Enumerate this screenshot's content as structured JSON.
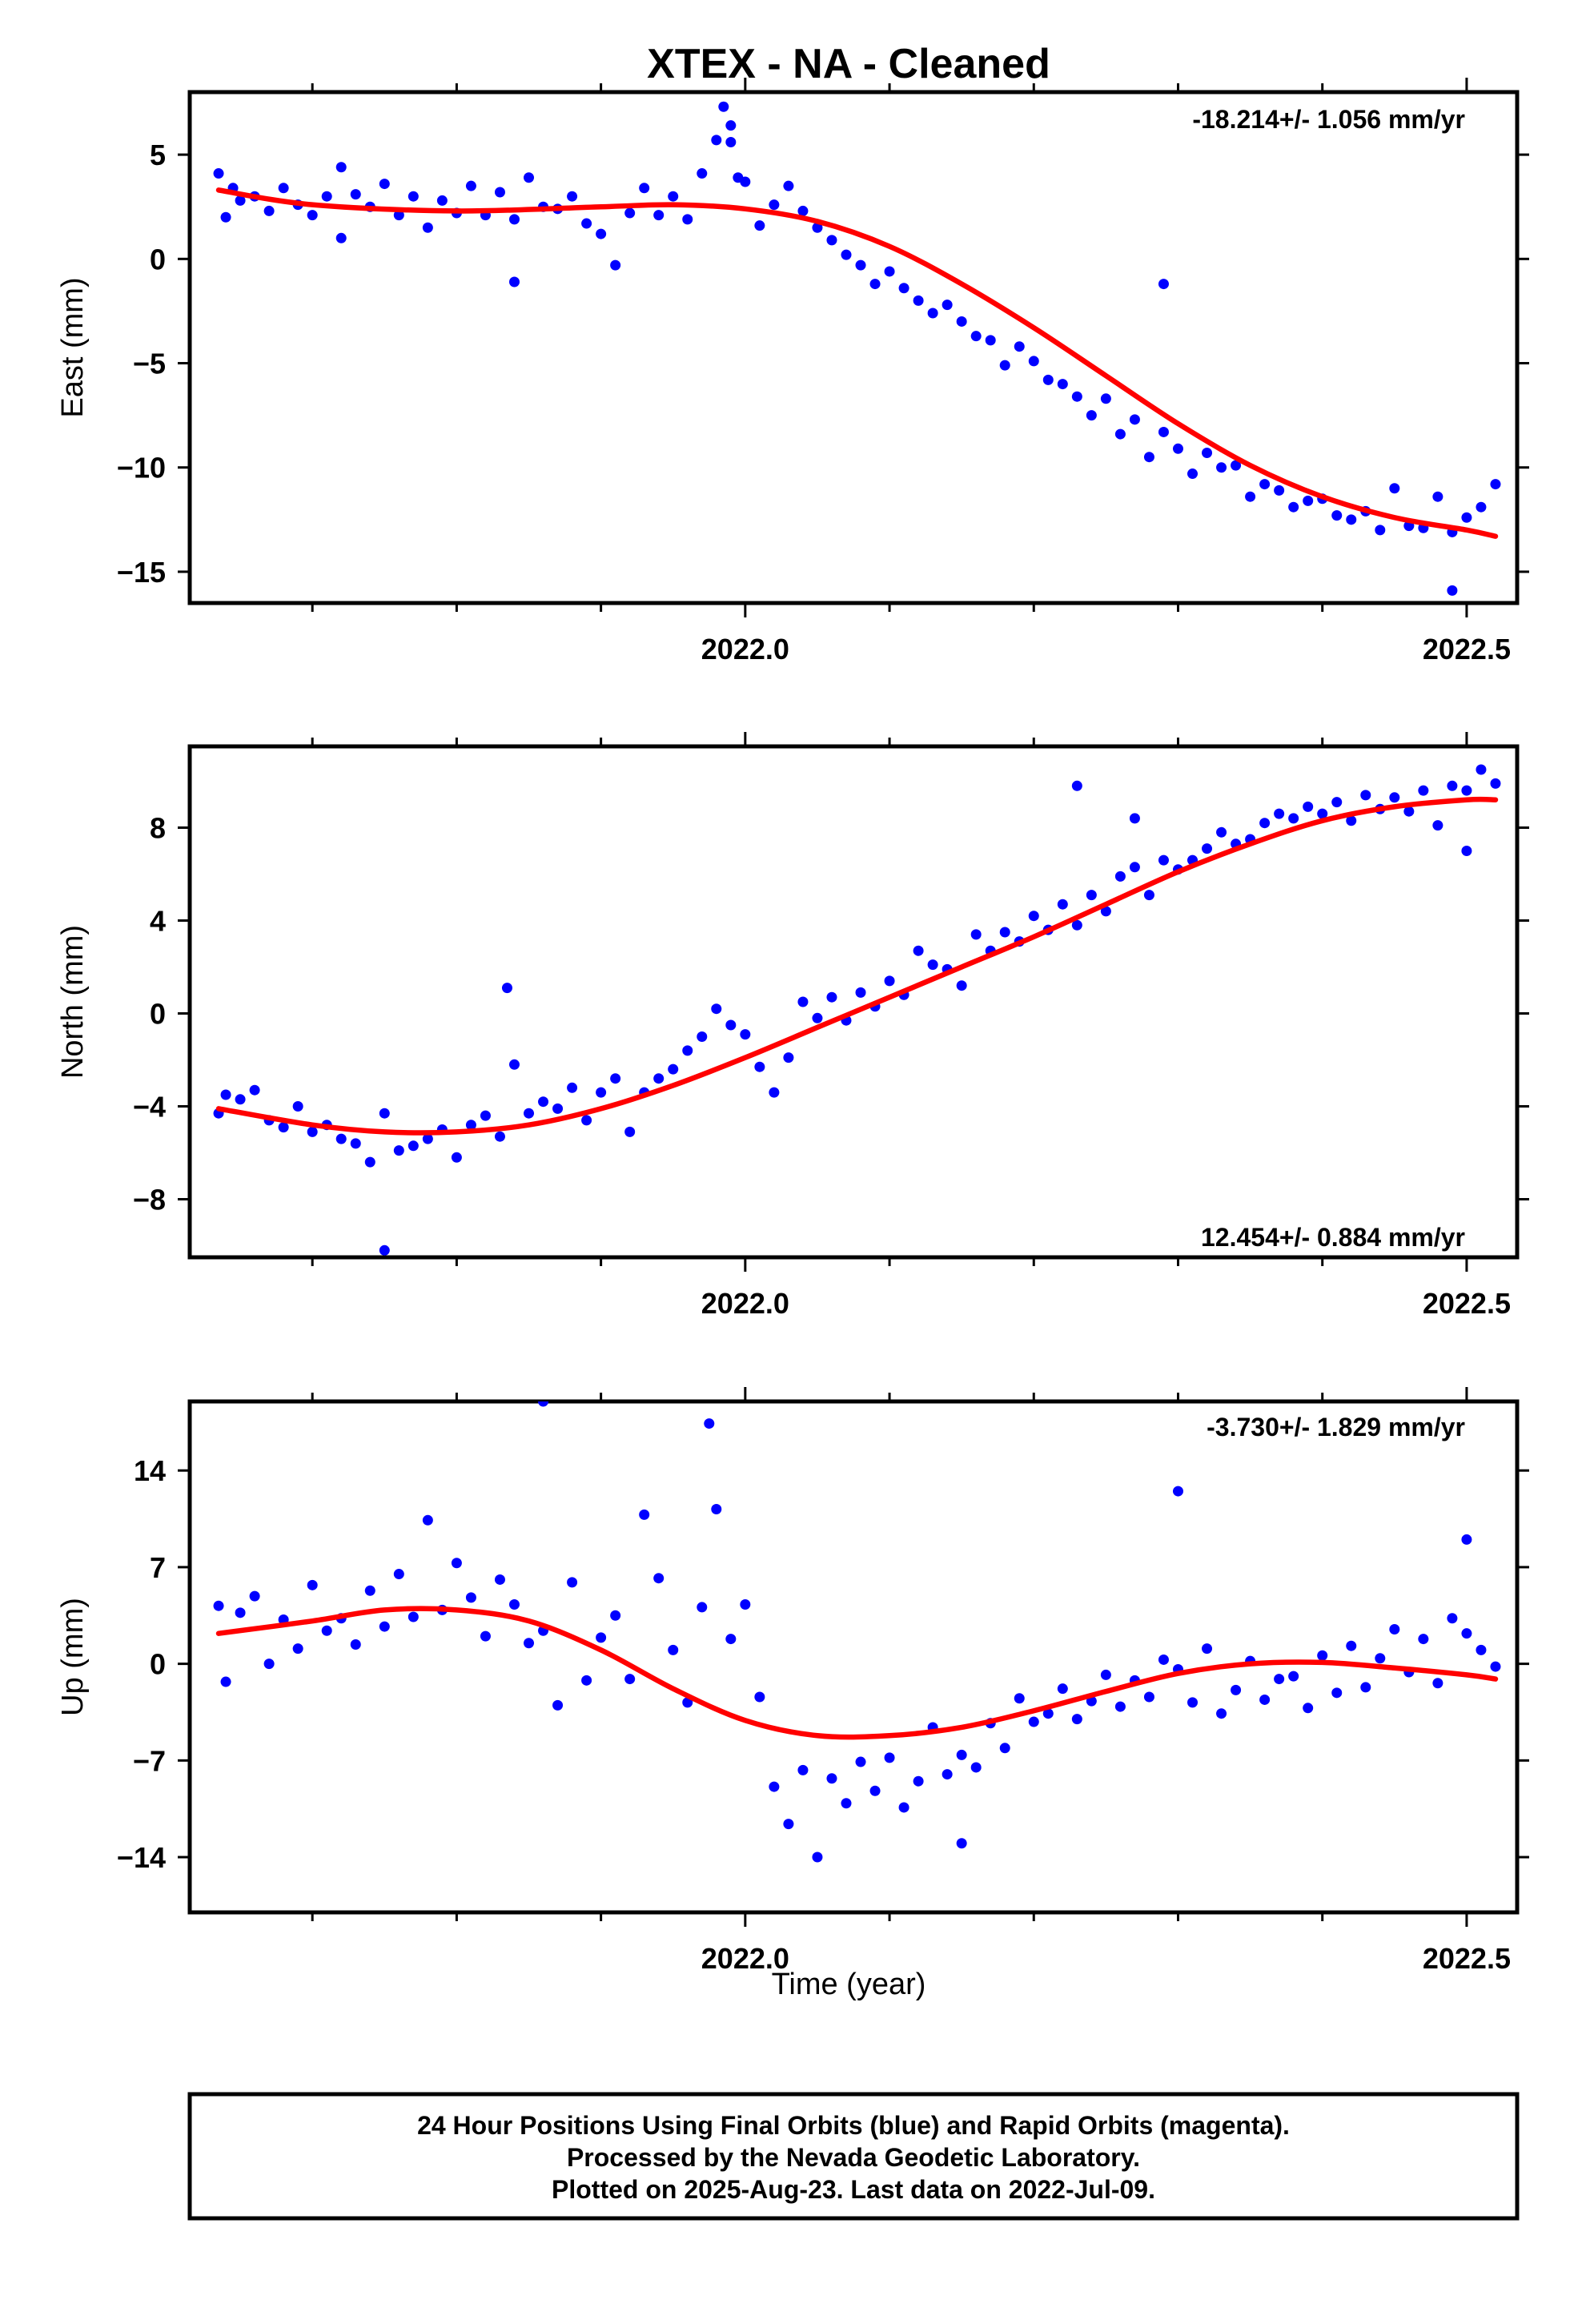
{
  "title": "XTEX  - NA - Cleaned",
  "xlabel": "Time (year)",
  "footer": [
    "24 Hour Positions Using Final Orbits (blue) and Rapid Orbits (magenta).",
    "Processed by the Nevada Geodetic Laboratory.",
    "Plotted on 2025-Aug-23. Last data on 2022-Jul-09."
  ],
  "colors": {
    "final_orbits": "#0000ff",
    "fit": "#ff0000",
    "frame": "#000000"
  },
  "chart_data": [
    {
      "type": "scatter",
      "ylabel": "East (mm)",
      "rate": "-18.214+/- 1.056 mm/yr",
      "xlim": [
        2021.615,
        2022.535
      ],
      "ylim": [
        -16.5,
        8.0
      ],
      "xticks": [
        2022.0,
        2022.5
      ],
      "xticklabels": [
        "2022.0",
        "2022.5"
      ],
      "yticks": [
        5,
        0,
        -5,
        -10,
        -15
      ],
      "yticklabels": [
        "5",
        "0",
        "−5",
        "−10",
        "−15"
      ],
      "fit": {
        "x": [
          2021.635,
          2021.7,
          2021.8,
          2021.9,
          2021.95,
          2022.0,
          2022.05,
          2022.1,
          2022.15,
          2022.2,
          2022.25,
          2022.3,
          2022.35,
          2022.4,
          2022.45,
          2022.5,
          2022.52
        ],
        "y": [
          3.3,
          2.6,
          2.3,
          2.5,
          2.6,
          2.4,
          1.8,
          0.6,
          -1.2,
          -3.3,
          -5.6,
          -7.9,
          -9.9,
          -11.4,
          -12.4,
          -13.0,
          -13.3
        ]
      },
      "points": {
        "x": [
          2021.635,
          2021.64,
          2021.645,
          2021.65,
          2021.66,
          2021.67,
          2021.68,
          2021.69,
          2021.7,
          2021.71,
          2021.72,
          2021.73,
          2021.74,
          2021.75,
          2021.76,
          2021.77,
          2021.78,
          2021.79,
          2021.8,
          2021.81,
          2021.82,
          2021.83,
          2021.84,
          2021.85,
          2021.86,
          2021.87,
          2021.88,
          2021.89,
          2021.9,
          2021.91,
          2021.92,
          2021.93,
          2021.94,
          2021.95,
          2021.96,
          2021.97,
          2021.98,
          2021.985,
          2021.99,
          2021.995,
          2022.0,
          2022.01,
          2022.02,
          2022.03,
          2022.04,
          2022.05,
          2022.06,
          2022.07,
          2022.08,
          2022.09,
          2022.1,
          2022.11,
          2022.12,
          2022.13,
          2022.14,
          2022.15,
          2022.16,
          2022.17,
          2022.18,
          2022.19,
          2022.2,
          2022.21,
          2022.22,
          2022.23,
          2022.24,
          2022.25,
          2022.26,
          2022.27,
          2022.28,
          2022.29,
          2022.3,
          2022.31,
          2022.32,
          2022.33,
          2022.34,
          2022.35,
          2022.36,
          2022.37,
          2022.38,
          2022.39,
          2022.4,
          2022.41,
          2022.42,
          2022.43,
          2022.44,
          2022.45,
          2022.46,
          2022.47,
          2022.48,
          2022.49,
          2022.5,
          2022.51,
          2022.52,
          2021.72,
          2021.84,
          2021.99,
          2022.29,
          2022.49
        ],
        "y": [
          4.1,
          2.0,
          3.4,
          2.8,
          3.0,
          2.3,
          3.4,
          2.6,
          2.1,
          3.0,
          4.4,
          3.1,
          2.5,
          3.6,
          2.1,
          3.0,
          1.5,
          2.8,
          2.2,
          3.5,
          2.1,
          3.2,
          1.9,
          3.9,
          2.5,
          2.4,
          3.0,
          1.7,
          1.2,
          -0.3,
          2.2,
          3.4,
          2.1,
          3.0,
          1.9,
          4.1,
          5.7,
          7.3,
          5.6,
          3.9,
          3.7,
          1.6,
          2.6,
          3.5,
          2.3,
          1.5,
          0.9,
          0.2,
          -0.3,
          -1.2,
          -0.6,
          -1.4,
          -2.0,
          -2.6,
          -2.2,
          -3.0,
          -3.7,
          -3.9,
          -5.1,
          -4.2,
          -4.9,
          -5.8,
          -6.0,
          -6.6,
          -7.5,
          -6.7,
          -8.4,
          -7.7,
          -9.5,
          -8.3,
          -9.1,
          -10.3,
          -9.3,
          -10.0,
          -9.9,
          -11.4,
          -10.8,
          -11.1,
          -11.9,
          -11.6,
          -11.5,
          -12.3,
          -12.5,
          -12.1,
          -13.0,
          -11.0,
          -12.8,
          -12.9,
          -11.4,
          -13.1,
          -12.4,
          -11.9,
          -10.8,
          1.0,
          -1.1,
          6.4,
          -1.2,
          -15.9
        ]
      }
    },
    {
      "type": "scatter",
      "ylabel": "North (mm)",
      "rate": "12.454+/- 0.884 mm/yr",
      "xlim": [
        2021.615,
        2022.535
      ],
      "ylim": [
        -10.5,
        11.5
      ],
      "xticks": [
        2022.0,
        2022.5
      ],
      "xticklabels": [
        "2022.0",
        "2022.5"
      ],
      "yticks": [
        8,
        4,
        0,
        -4,
        -8
      ],
      "yticklabels": [
        "8",
        "4",
        "0",
        "−4",
        "−8"
      ],
      "fit": {
        "x": [
          2021.635,
          2021.7,
          2021.75,
          2021.8,
          2021.85,
          2021.9,
          2021.95,
          2022.0,
          2022.05,
          2022.1,
          2022.15,
          2022.2,
          2022.25,
          2022.3,
          2022.35,
          2022.4,
          2022.45,
          2022.5,
          2022.52
        ],
        "y": [
          -4.1,
          -4.8,
          -5.1,
          -5.1,
          -4.8,
          -4.1,
          -3.1,
          -1.9,
          -0.6,
          0.7,
          2.0,
          3.3,
          4.7,
          6.1,
          7.3,
          8.3,
          8.9,
          9.2,
          9.2
        ]
      },
      "points": {
        "x": [
          2021.635,
          2021.64,
          2021.65,
          2021.66,
          2021.67,
          2021.68,
          2021.69,
          2021.7,
          2021.71,
          2021.72,
          2021.73,
          2021.74,
          2021.75,
          2021.76,
          2021.77,
          2021.78,
          2021.79,
          2021.8,
          2021.81,
          2021.82,
          2021.83,
          2021.84,
          2021.85,
          2021.86,
          2021.87,
          2021.88,
          2021.89,
          2021.9,
          2021.91,
          2021.92,
          2021.93,
          2021.94,
          2021.95,
          2021.96,
          2021.97,
          2021.98,
          2021.99,
          2022.0,
          2022.01,
          2022.02,
          2022.03,
          2022.04,
          2022.05,
          2022.06,
          2022.07,
          2022.08,
          2022.09,
          2022.1,
          2022.11,
          2022.12,
          2022.13,
          2022.14,
          2022.15,
          2022.16,
          2022.17,
          2022.18,
          2022.19,
          2022.2,
          2022.21,
          2022.22,
          2022.23,
          2022.24,
          2022.25,
          2022.26,
          2022.27,
          2022.28,
          2022.29,
          2022.3,
          2022.31,
          2022.32,
          2022.33,
          2022.34,
          2022.35,
          2022.36,
          2022.37,
          2022.38,
          2022.39,
          2022.4,
          2022.41,
          2022.42,
          2022.43,
          2022.44,
          2022.45,
          2022.46,
          2022.47,
          2022.48,
          2022.49,
          2022.5,
          2022.51,
          2022.52,
          2021.75,
          2021.835,
          2022.23,
          2022.27,
          2022.5
        ],
        "y": [
          -4.3,
          -3.5,
          -3.7,
          -3.3,
          -4.6,
          -4.9,
          -4.0,
          -5.1,
          -4.8,
          -5.4,
          -5.6,
          -6.4,
          -4.3,
          -5.9,
          -5.7,
          -5.4,
          -5.0,
          -6.2,
          -4.8,
          -4.4,
          -5.3,
          -2.2,
          -4.3,
          -3.8,
          -4.1,
          -3.2,
          -4.6,
          -3.4,
          -2.8,
          -5.1,
          -3.4,
          -2.8,
          -2.4,
          -1.6,
          -1.0,
          0.2,
          -0.5,
          -0.9,
          -2.3,
          -3.4,
          -1.9,
          0.5,
          -0.2,
          0.7,
          -0.3,
          0.9,
          0.3,
          1.4,
          0.8,
          2.7,
          2.1,
          1.9,
          1.2,
          3.4,
          2.7,
          3.5,
          3.1,
          4.2,
          3.6,
          4.7,
          3.8,
          5.1,
          4.4,
          5.9,
          6.3,
          5.1,
          6.6,
          6.2,
          6.6,
          7.1,
          7.8,
          7.3,
          7.5,
          8.2,
          8.6,
          8.4,
          8.9,
          8.6,
          9.1,
          8.3,
          9.4,
          8.8,
          9.3,
          8.7,
          9.6,
          8.1,
          9.8,
          9.6,
          10.5,
          9.9,
          -10.2,
          1.1,
          9.8,
          8.4,
          7.0
        ]
      }
    },
    {
      "type": "scatter",
      "ylabel": "Up (mm)",
      "rate": "-3.730+/- 1.829 mm/yr",
      "xlim": [
        2021.615,
        2022.535
      ],
      "ylim": [
        -18.0,
        19.0
      ],
      "xticks": [
        2022.0,
        2022.5
      ],
      "xticklabels": [
        "2022.0",
        "2022.5"
      ],
      "yticks": [
        14,
        7,
        0,
        -7,
        -14
      ],
      "yticklabels": [
        "14",
        "7",
        "0",
        "−7",
        "−14"
      ],
      "fit": {
        "x": [
          2021.635,
          2021.7,
          2021.75,
          2021.8,
          2021.85,
          2021.9,
          2021.95,
          2022.0,
          2022.05,
          2022.1,
          2022.15,
          2022.2,
          2022.25,
          2022.3,
          2022.35,
          2022.4,
          2022.45,
          2022.5,
          2022.52
        ],
        "y": [
          2.2,
          3.1,
          3.9,
          3.9,
          3.1,
          1.0,
          -1.8,
          -4.1,
          -5.2,
          -5.2,
          -4.6,
          -3.4,
          -2.0,
          -0.7,
          0.0,
          0.1,
          -0.3,
          -0.8,
          -1.1
        ]
      },
      "points": {
        "x": [
          2021.635,
          2021.64,
          2021.65,
          2021.66,
          2021.67,
          2021.68,
          2021.69,
          2021.7,
          2021.71,
          2021.72,
          2021.73,
          2021.74,
          2021.75,
          2021.76,
          2021.77,
          2021.78,
          2021.79,
          2021.8,
          2021.81,
          2021.82,
          2021.83,
          2021.84,
          2021.85,
          2021.86,
          2021.87,
          2021.88,
          2021.89,
          2021.9,
          2021.91,
          2021.92,
          2021.93,
          2021.94,
          2021.95,
          2021.96,
          2021.97,
          2021.98,
          2021.99,
          2022.0,
          2022.01,
          2022.02,
          2022.03,
          2022.04,
          2022.05,
          2022.06,
          2022.07,
          2022.08,
          2022.09,
          2022.1,
          2022.11,
          2022.12,
          2022.13,
          2022.14,
          2022.15,
          2022.16,
          2022.17,
          2022.18,
          2022.19,
          2022.2,
          2022.21,
          2022.22,
          2022.23,
          2022.24,
          2022.25,
          2022.26,
          2022.27,
          2022.28,
          2022.29,
          2022.3,
          2022.31,
          2022.32,
          2022.33,
          2022.34,
          2022.35,
          2022.36,
          2022.37,
          2022.38,
          2022.39,
          2022.4,
          2022.41,
          2022.42,
          2022.43,
          2022.44,
          2022.45,
          2022.46,
          2022.47,
          2022.48,
          2022.49,
          2022.5,
          2022.51,
          2022.52,
          2021.86,
          2021.975,
          2022.15,
          2022.3,
          2022.5
        ],
        "y": [
          4.2,
          -1.3,
          3.7,
          4.9,
          0.0,
          3.2,
          1.1,
          5.7,
          2.4,
          3.3,
          1.4,
          5.3,
          2.7,
          6.5,
          3.4,
          10.4,
          3.9,
          7.3,
          4.8,
          2.0,
          6.1,
          4.3,
          1.5,
          2.4,
          -3.0,
          5.9,
          -1.2,
          1.9,
          3.5,
          -1.1,
          10.8,
          6.2,
          1.0,
          -2.8,
          4.1,
          11.2,
          1.8,
          4.3,
          -2.4,
          -8.9,
          -11.6,
          -7.7,
          -14.0,
          -8.3,
          -10.1,
          -7.1,
          -9.2,
          -6.8,
          -10.4,
          -8.5,
          -4.6,
          -8.0,
          -6.6,
          -7.5,
          -4.3,
          -6.1,
          -2.5,
          -4.2,
          -3.6,
          -1.8,
          -4.0,
          -2.7,
          -0.8,
          -3.1,
          -1.2,
          -2.4,
          0.3,
          -0.4,
          -2.8,
          1.1,
          -3.6,
          -1.9,
          0.2,
          -2.6,
          -1.1,
          -0.9,
          -3.2,
          0.6,
          -2.1,
          1.3,
          -1.7,
          0.4,
          2.5,
          -0.6,
          1.8,
          -1.4,
          3.3,
          2.2,
          1.0,
          -0.2,
          19.0,
          17.4,
          -13.0,
          12.5,
          9.0
        ]
      }
    }
  ]
}
